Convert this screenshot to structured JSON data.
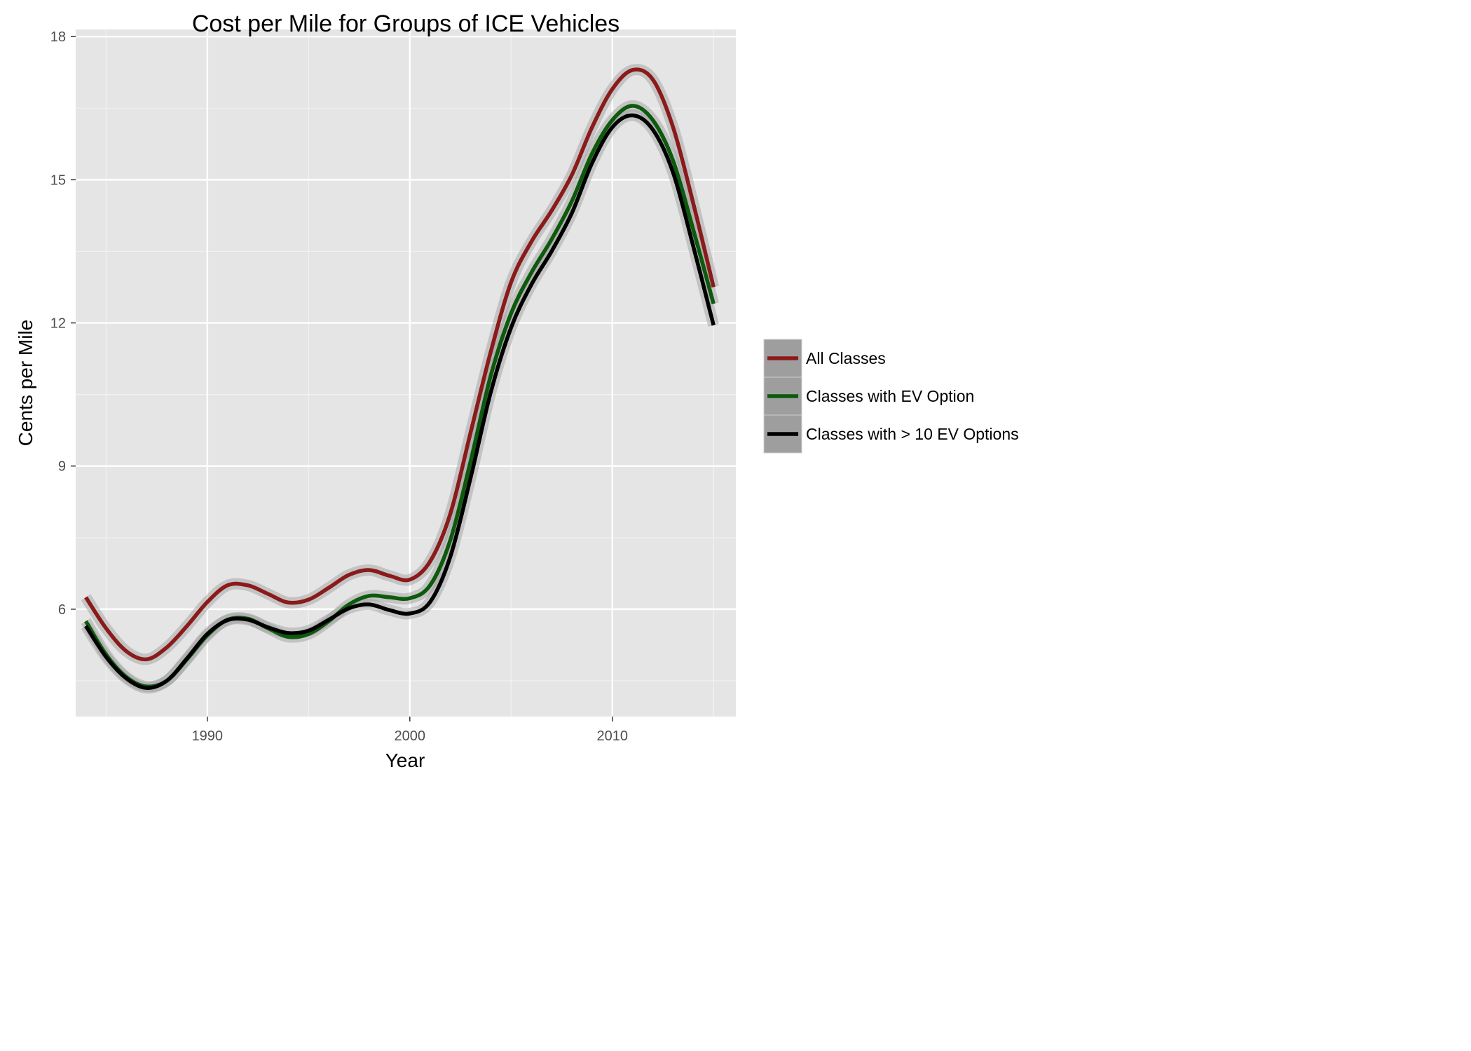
{
  "chart_data": {
    "type": "line",
    "title": "Cost per Mile for Groups of ICE Vehicles",
    "xlabel": "Year",
    "ylabel": "Cents per Mile",
    "xlim": [
      1983.5,
      2016.1
    ],
    "ylim": [
      3.75,
      18.15
    ],
    "x_ticks": [
      1990,
      2000,
      2010
    ],
    "x_tick_labels": [
      "1990",
      "2000",
      "2010"
    ],
    "y_ticks": [
      6,
      9,
      12,
      15,
      18
    ],
    "y_tick_labels": [
      "6",
      "9",
      "12",
      "15",
      "18"
    ],
    "grid": true,
    "legend": "right",
    "confidence_band": true,
    "x": [
      1984,
      1985,
      1986,
      1987,
      1988,
      1989,
      1990,
      1991,
      1992,
      1993,
      1994,
      1995,
      1996,
      1997,
      1998,
      1999,
      2000,
      2001,
      2002,
      2003,
      2004,
      2005,
      2006,
      2007,
      2008,
      2009,
      2010,
      2011,
      2012,
      2013,
      2014,
      2015
    ],
    "series": [
      {
        "name": "All Classes",
        "color": "#8b1a1a",
        "values": [
          6.25,
          5.6,
          5.12,
          4.95,
          5.2,
          5.65,
          6.15,
          6.5,
          6.5,
          6.32,
          6.14,
          6.2,
          6.45,
          6.72,
          6.82,
          6.7,
          6.62,
          7.0,
          8.0,
          9.7,
          11.4,
          12.85,
          13.7,
          14.35,
          15.1,
          16.1,
          16.9,
          17.3,
          17.1,
          16.1,
          14.5,
          12.75
        ]
      },
      {
        "name": "Classes with EV Option",
        "color": "#0d5a0d",
        "values": [
          5.75,
          5.05,
          4.58,
          4.38,
          4.5,
          4.95,
          5.45,
          5.78,
          5.8,
          5.6,
          5.42,
          5.48,
          5.75,
          6.1,
          6.28,
          6.25,
          6.23,
          6.5,
          7.45,
          9.1,
          10.9,
          12.2,
          13.05,
          13.75,
          14.55,
          15.55,
          16.25,
          16.55,
          16.25,
          15.4,
          13.95,
          12.4
        ]
      },
      {
        "name": "Classes with > 10 EV Options",
        "color": "#000000",
        "values": [
          5.65,
          5.0,
          4.55,
          4.35,
          4.5,
          4.97,
          5.48,
          5.77,
          5.78,
          5.62,
          5.5,
          5.55,
          5.78,
          6.02,
          6.1,
          5.98,
          5.91,
          6.15,
          7.1,
          8.75,
          10.55,
          11.9,
          12.8,
          13.5,
          14.3,
          15.35,
          16.1,
          16.35,
          16.05,
          15.15,
          13.6,
          11.95
        ]
      }
    ]
  }
}
